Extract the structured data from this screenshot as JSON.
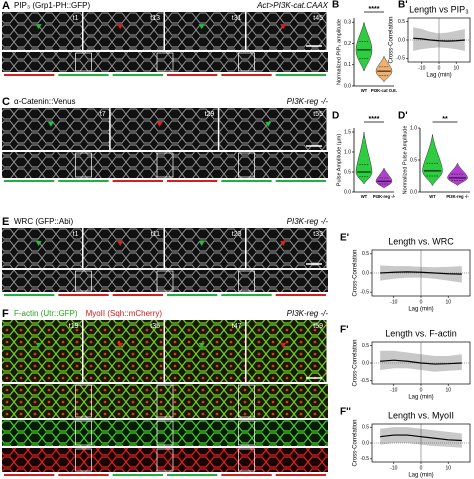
{
  "panels": [
    {
      "letter": "A",
      "labels": [
        "PIP₃ (Grp1-PH::GFP)"
      ],
      "condition": "Act>PI3K-cat.CAAX",
      "times": [
        "t1",
        "t13",
        "t31",
        "t45"
      ]
    },
    {
      "letter": "C",
      "labels": [
        "α-Catenin::Venus"
      ],
      "condition": "PI3K-reg -/-",
      "times": [
        "t7",
        "t29",
        "t55"
      ]
    },
    {
      "letter": "E",
      "labels": [
        "WRC (GFP::Abi)"
      ],
      "condition": "PI3K-reg -/-",
      "times": [
        "t1",
        "t11",
        "t23",
        "t33"
      ]
    },
    {
      "letter": "F",
      "labels": [
        "F-actin (Utr::GFP)",
        "MyoII (Sqh::mCherry)"
      ],
      "condition": "PI3K-reg -/-",
      "times": [
        "t19",
        "t35",
        "t47",
        "t59"
      ]
    }
  ],
  "chart_data": [
    {
      "panel": "B",
      "type": "violin",
      "ylabel": "Normalized PIP₃ amplitude",
      "categories": [
        "WT",
        "PI3K-cat O.E."
      ],
      "colors": [
        "#2ecc40",
        "#f0b070"
      ],
      "min": [
        0.07,
        0.02
      ],
      "q1": [
        0.13,
        0.05
      ],
      "median": [
        0.17,
        0.07
      ],
      "q3": [
        0.21,
        0.09
      ],
      "max": [
        0.3,
        0.14
      ],
      "significance": "****",
      "ylim": [
        0,
        0.32
      ],
      "yticks": [
        {
          "value": 0,
          "label": "0.0"
        },
        0.1,
        0.2,
        0.3
      ]
    },
    {
      "panel": "B'",
      "type": "xcorr",
      "title": "Length vs PIP₃",
      "ylabel": "Cross-Correlation",
      "xlabel": "Lag (min)",
      "x": [
        -15,
        -10,
        -5,
        0,
        5,
        10,
        15
      ],
      "values": [
        0.05,
        0.03,
        0.0,
        -0.02,
        -0.03,
        -0.02,
        0.0
      ],
      "lower": [
        -0.3,
        -0.25,
        -0.22,
        -0.2,
        -0.22,
        -0.25,
        -0.3
      ],
      "upper": [
        0.35,
        0.3,
        0.22,
        0.18,
        0.2,
        0.25,
        0.3
      ],
      "xlim": [
        -18,
        18
      ],
      "ylim": [
        -0.6,
        0.6
      ],
      "xticks": [
        -10,
        0,
        10
      ],
      "yticks": [
        -0.5,
        {
          "value": 0,
          "label": "0.0"
        },
        0.5
      ]
    },
    {
      "panel": "D",
      "type": "violin",
      "ylabel": "Pulse Amplitude (µm)",
      "categories": [
        "WT",
        "PI3K-reg -/-"
      ],
      "colors": [
        "#2ecc40",
        "#b040d0"
      ],
      "min": [
        0.2,
        0.1
      ],
      "q1": [
        0.38,
        0.2
      ],
      "median": [
        0.5,
        0.27
      ],
      "q3": [
        0.68,
        0.35
      ],
      "max": [
        1.5,
        0.6
      ],
      "significance": "****",
      "ylim": [
        0,
        1.6
      ],
      "yticks": [
        {
          "value": 0,
          "label": "0.0"
        },
        0.5,
        {
          "value": 1,
          "label": "1.0"
        },
        1.5
      ]
    },
    {
      "panel": "D'",
      "type": "violin",
      "ylabel": "Normalized Pulse Amplitude",
      "categories": [
        "WT",
        "PI3K-reg -/-"
      ],
      "colors": [
        "#2ecc40",
        "#b040d0"
      ],
      "min": [
        0.1,
        0.1
      ],
      "q1": [
        0.25,
        0.18
      ],
      "median": [
        0.33,
        0.22
      ],
      "q3": [
        0.45,
        0.28
      ],
      "max": [
        0.9,
        0.45
      ],
      "significance": "**",
      "ylim": [
        0,
        1
      ],
      "yticks": [
        {
          "value": 0,
          "label": "0.0"
        },
        0.5,
        {
          "value": 1,
          "label": "1.0"
        }
      ]
    },
    {
      "panel": "E'",
      "type": "xcorr",
      "title": "Length vs. WRC",
      "ylabel": "Cross-Correlation",
      "xlabel": "Lag (min)",
      "x": [
        -15,
        -10,
        -5,
        0,
        5,
        10,
        15
      ],
      "values": [
        0.0,
        0.02,
        0.03,
        0.02,
        0.0,
        -0.02,
        -0.03
      ],
      "lower": [
        -0.2,
        -0.15,
        -0.12,
        -0.12,
        -0.15,
        -0.2,
        -0.25
      ],
      "upper": [
        0.2,
        0.18,
        0.18,
        0.16,
        0.15,
        0.16,
        0.18
      ],
      "xlim": [
        -18,
        18
      ],
      "ylim": [
        -0.6,
        0.6
      ],
      "xticks": [
        -10,
        0,
        10
      ],
      "yticks": [
        -0.5,
        {
          "value": 0,
          "label": "0.0"
        },
        0.5
      ]
    },
    {
      "panel": "F'",
      "type": "xcorr",
      "title": "Length vs. F-actin",
      "ylabel": "Cross-Correlation",
      "xlabel": "Lag (min)",
      "x": [
        -15,
        -10,
        -5,
        0,
        5,
        10,
        15
      ],
      "values": [
        0.05,
        0.08,
        0.05,
        0.0,
        -0.03,
        -0.02,
        0.0
      ],
      "lower": [
        -0.2,
        -0.15,
        -0.15,
        -0.2,
        -0.25,
        -0.22,
        -0.2
      ],
      "upper": [
        0.35,
        0.35,
        0.3,
        0.25,
        0.2,
        0.2,
        0.25
      ],
      "xlim": [
        -18,
        18
      ],
      "ylim": [
        -0.6,
        0.6
      ],
      "xticks": [
        -10,
        0,
        10
      ],
      "yticks": [
        -0.5,
        {
          "value": 0,
          "label": "0.0"
        },
        0.5
      ]
    },
    {
      "panel": "F''",
      "type": "xcorr",
      "title": "Length vs. MyoII",
      "ylabel": "Cross-Correlation",
      "xlabel": "Lag (min)",
      "x": [
        -15,
        -10,
        -5,
        0,
        5,
        10,
        15
      ],
      "values": [
        0.2,
        0.25,
        0.25,
        0.2,
        0.15,
        0.1,
        0.08
      ],
      "lower": [
        -0.05,
        0.0,
        0.0,
        -0.05,
        -0.1,
        -0.12,
        -0.15
      ],
      "upper": [
        0.45,
        0.5,
        0.5,
        0.45,
        0.4,
        0.35,
        0.3
      ],
      "xlim": [
        -18,
        18
      ],
      "ylim": [
        -0.6,
        0.6
      ],
      "xticks": [
        -10,
        0,
        10
      ],
      "yticks": [
        -0.5,
        {
          "value": 0,
          "label": "0.0"
        },
        0.5
      ]
    }
  ]
}
